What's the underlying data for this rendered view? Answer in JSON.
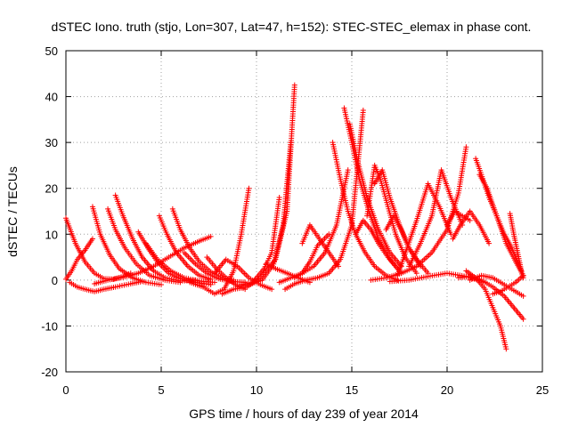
{
  "chart_data": {
    "type": "scatter",
    "title": "dSTEC Iono. truth (stjo, Lon=307, Lat=47, h=152): STEC-STEC_elemax in phase cont.",
    "xlabel": "GPS time / hours of day 239 of year 2014",
    "ylabel": "dSTEC  / TECUs",
    "xlim": [
      0,
      25
    ],
    "ylim": [
      -20,
      50
    ],
    "xticks": [
      0,
      5,
      10,
      15,
      20,
      25
    ],
    "yticks": [
      -20,
      -10,
      0,
      10,
      20,
      30,
      40,
      50
    ],
    "grid": true,
    "marker": "+",
    "color": "#ff0000",
    "series": [
      {
        "x": [
          0.0,
          0.5,
          1.0,
          1.5,
          2.0,
          2.5,
          3.0,
          3.4
        ],
        "y": [
          13.5,
          8.0,
          4.0,
          1.5,
          0.3,
          0.2,
          0.8,
          1.5
        ]
      },
      {
        "x": [
          0.0,
          0.3,
          0.6,
          1.0,
          1.4
        ],
        "y": [
          0.2,
          2.0,
          4.5,
          6.5,
          9.0
        ]
      },
      {
        "x": [
          0.2,
          0.6,
          1.0,
          1.5,
          2.0,
          2.6,
          3.4,
          4.0
        ],
        "y": [
          -0.5,
          -1.5,
          -2.0,
          -2.5,
          -2.0,
          -1.5,
          -0.8,
          -0.3
        ]
      },
      {
        "x": [
          1.4,
          1.8,
          2.3,
          2.8,
          3.5,
          4.2,
          5.0
        ],
        "y": [
          16.0,
          10.0,
          5.5,
          2.5,
          0.5,
          -0.5,
          -1.0
        ]
      },
      {
        "x": [
          2.2,
          2.6,
          3.1,
          3.7,
          4.4,
          5.2,
          6.0
        ],
        "y": [
          15.5,
          11.0,
          7.0,
          3.5,
          1.0,
          0.0,
          -0.5
        ]
      },
      {
        "x": [
          2.6,
          3.0,
          3.5,
          4.0,
          4.6,
          5.2,
          6.0,
          6.8
        ],
        "y": [
          18.5,
          14.0,
          9.0,
          5.0,
          2.0,
          0.5,
          -0.2,
          0.0
        ]
      },
      {
        "x": [
          3.8,
          4.3,
          4.8,
          5.4,
          6.0,
          6.8,
          7.6
        ],
        "y": [
          10.5,
          7.0,
          4.0,
          1.5,
          0.3,
          -0.5,
          -1.0
        ]
      },
      {
        "x": [
          4.2,
          4.8,
          5.5,
          6.2,
          7.0,
          7.8
        ],
        "y": [
          8.0,
          4.5,
          2.0,
          0.5,
          -0.2,
          -0.5
        ]
      },
      {
        "x": [
          4.9,
          5.3,
          5.8,
          6.4,
          7.0,
          7.6
        ],
        "y": [
          14.0,
          10.0,
          6.0,
          3.0,
          1.0,
          0.2
        ]
      },
      {
        "x": [
          5.6,
          6.0,
          6.5,
          7.0,
          7.6,
          8.2,
          8.8
        ],
        "y": [
          15.5,
          11.0,
          7.0,
          4.0,
          1.8,
          0.5,
          0.0
        ]
      },
      {
        "x": [
          6.2,
          6.8,
          7.4,
          8.0,
          8.7,
          9.4
        ],
        "y": [
          6.0,
          3.5,
          1.5,
          0.3,
          -0.3,
          -0.5
        ]
      },
      {
        "x": [
          1.5,
          2.2,
          3.0,
          3.8,
          4.6,
          5.4,
          6.2,
          7.0,
          7.6
        ],
        "y": [
          -0.8,
          0.0,
          0.6,
          1.5,
          3.0,
          5.0,
          7.0,
          8.5,
          9.5
        ]
      },
      {
        "x": [
          6.5,
          7.2,
          7.8,
          8.3,
          8.8,
          9.2,
          9.6
        ],
        "y": [
          -0.5,
          -1.5,
          -3.0,
          -2.0,
          2.0,
          10.0,
          20.0
        ]
      },
      {
        "x": [
          7.4,
          7.9,
          8.4,
          8.9,
          9.4
        ],
        "y": [
          5.0,
          2.5,
          0.5,
          -1.0,
          -2.0
        ]
      },
      {
        "x": [
          7.8,
          8.4,
          9.0,
          9.6,
          10.2,
          10.8
        ],
        "y": [
          1.5,
          4.5,
          3.0,
          0.5,
          -1.0,
          -2.0
        ]
      },
      {
        "x": [
          8.2,
          8.8,
          9.5,
          10.2,
          11.0,
          11.6,
          12.0
        ],
        "y": [
          -3.0,
          -2.0,
          -1.5,
          0.5,
          4.5,
          15.0,
          42.5
        ]
      },
      {
        "x": [
          9.0,
          9.6,
          10.3,
          10.9,
          11.4,
          11.8
        ],
        "y": [
          -1.5,
          -1.0,
          0.0,
          3.5,
          12.0,
          30.0
        ]
      },
      {
        "x": [
          9.2,
          9.8,
          10.4,
          10.8,
          11.2
        ],
        "y": [
          -1.0,
          -0.5,
          2.5,
          6.0,
          18.0
        ]
      },
      {
        "x": [
          10.5,
          11.0,
          11.6,
          12.2,
          12.8
        ],
        "y": [
          3.5,
          2.5,
          1.5,
          0.5,
          -0.5
        ]
      },
      {
        "x": [
          11.5,
          12.0,
          12.6,
          13.2,
          13.8,
          14.4,
          15.0,
          15.6
        ],
        "y": [
          -2.0,
          -0.8,
          0.0,
          0.5,
          1.5,
          4.5,
          12.0,
          37.0
        ]
      },
      {
        "x": [
          12.0,
          12.4,
          12.8,
          13.2,
          13.8
        ],
        "y": [
          0.5,
          1.5,
          4.0,
          7.5,
          10.0
        ]
      },
      {
        "x": [
          12.4,
          12.8,
          13.3,
          13.8,
          14.3
        ],
        "y": [
          8.0,
          12.0,
          9.0,
          6.0,
          3.0
        ]
      },
      {
        "x": [
          11.2,
          11.8,
          12.4,
          13.0,
          13.6,
          14.2,
          14.8
        ],
        "y": [
          -0.5,
          0.5,
          1.5,
          3.0,
          6.0,
          12.0,
          24.0
        ]
      },
      {
        "x": [
          14.0,
          14.4,
          14.8,
          15.2,
          15.7,
          16.2,
          16.8,
          17.4
        ],
        "y": [
          30.0,
          22.0,
          15.0,
          10.0,
          6.0,
          3.0,
          1.0,
          0.0
        ]
      },
      {
        "x": [
          14.6,
          15.0,
          15.4,
          15.9,
          16.4,
          17.0,
          17.6
        ],
        "y": [
          37.5,
          30.0,
          22.0,
          15.0,
          9.0,
          4.5,
          1.5
        ]
      },
      {
        "x": [
          14.9,
          15.3,
          15.8,
          16.4,
          17.0,
          17.6
        ],
        "y": [
          34.0,
          26.0,
          18.0,
          11.0,
          6.0,
          3.0
        ]
      },
      {
        "x": [
          15.2,
          15.6,
          16.0,
          16.4,
          16.9,
          17.4
        ],
        "y": [
          10.0,
          13.0,
          11.0,
          8.0,
          5.0,
          2.5
        ]
      },
      {
        "x": [
          15.8,
          16.2,
          16.5,
          16.9,
          17.3,
          17.8,
          18.4
        ],
        "y": [
          14.0,
          25.0,
          22.0,
          16.0,
          10.0,
          5.0,
          1.5
        ]
      },
      {
        "x": [
          16.2,
          16.6,
          17.0,
          17.5,
          18.0,
          18.6
        ],
        "y": [
          21.0,
          24.0,
          18.0,
          12.0,
          7.0,
          3.0
        ]
      },
      {
        "x": [
          16.8,
          17.2,
          17.6,
          18.0,
          18.5,
          19.0
        ],
        "y": [
          11.0,
          14.0,
          11.0,
          7.0,
          4.0,
          1.5
        ]
      },
      {
        "x": [
          17.4,
          17.9,
          18.4,
          19.0,
          19.6,
          20.2
        ],
        "y": [
          1.0,
          7.0,
          13.0,
          21.0,
          16.0,
          10.0
        ]
      },
      {
        "x": [
          18.0,
          18.6,
          19.2,
          19.7,
          20.2,
          20.8
        ],
        "y": [
          3.0,
          8.0,
          14.0,
          24.0,
          18.0,
          12.0
        ]
      },
      {
        "x": [
          16.0,
          16.8,
          17.6,
          18.4,
          19.2,
          20.0,
          20.6,
          21.0
        ],
        "y": [
          0.0,
          0.5,
          1.5,
          3.0,
          6.0,
          11.0,
          19.0,
          29.0
        ]
      },
      {
        "x": [
          20.0,
          20.4,
          20.8,
          21.2
        ],
        "y": [
          12.0,
          15.0,
          14.0,
          13.0
        ]
      },
      {
        "x": [
          20.3,
          20.7,
          21.2,
          21.7,
          22.2
        ],
        "y": [
          9.0,
          12.0,
          15.0,
          12.0,
          8.0
        ]
      },
      {
        "x": [
          21.5,
          21.8,
          22.2,
          22.6,
          23.0,
          23.4,
          23.8,
          24.0
        ],
        "y": [
          26.5,
          23.0,
          18.0,
          14.0,
          10.0,
          7.0,
          3.0,
          0.5
        ]
      },
      {
        "x": [
          21.7,
          22.1,
          22.6,
          23.1,
          23.6,
          24.0
        ],
        "y": [
          23.0,
          20.0,
          14.0,
          8.0,
          4.0,
          1.0
        ]
      },
      {
        "x": [
          21.0,
          21.5,
          22.0,
          22.4,
          22.8,
          23.1
        ],
        "y": [
          2.0,
          0.5,
          -2.0,
          -6.0,
          -10.0,
          -15.0
        ]
      },
      {
        "x": [
          20.6,
          21.2,
          21.8,
          22.4,
          23.0,
          23.6,
          24.0
        ],
        "y": [
          0.5,
          0.8,
          0.0,
          -1.5,
          -3.5,
          -6.5,
          -8.5
        ]
      },
      {
        "x": [
          21.2,
          21.8,
          22.4,
          23.0,
          23.6,
          24.0
        ],
        "y": [
          0.0,
          1.0,
          0.5,
          -1.0,
          -2.5,
          -3.5
        ]
      },
      {
        "x": [
          22.4,
          22.8,
          23.2,
          23.6,
          24.0
        ],
        "y": [
          -3.0,
          -2.5,
          -1.5,
          -0.5,
          1.0
        ]
      },
      {
        "x": [
          23.3,
          23.5,
          23.7,
          23.9
        ],
        "y": [
          14.5,
          10.0,
          6.0,
          2.0
        ]
      },
      {
        "x": [
          17.0,
          18.0,
          19.0,
          20.0,
          21.0,
          22.0
        ],
        "y": [
          -0.3,
          0.0,
          0.8,
          1.5,
          0.8,
          -0.5
        ]
      }
    ]
  }
}
